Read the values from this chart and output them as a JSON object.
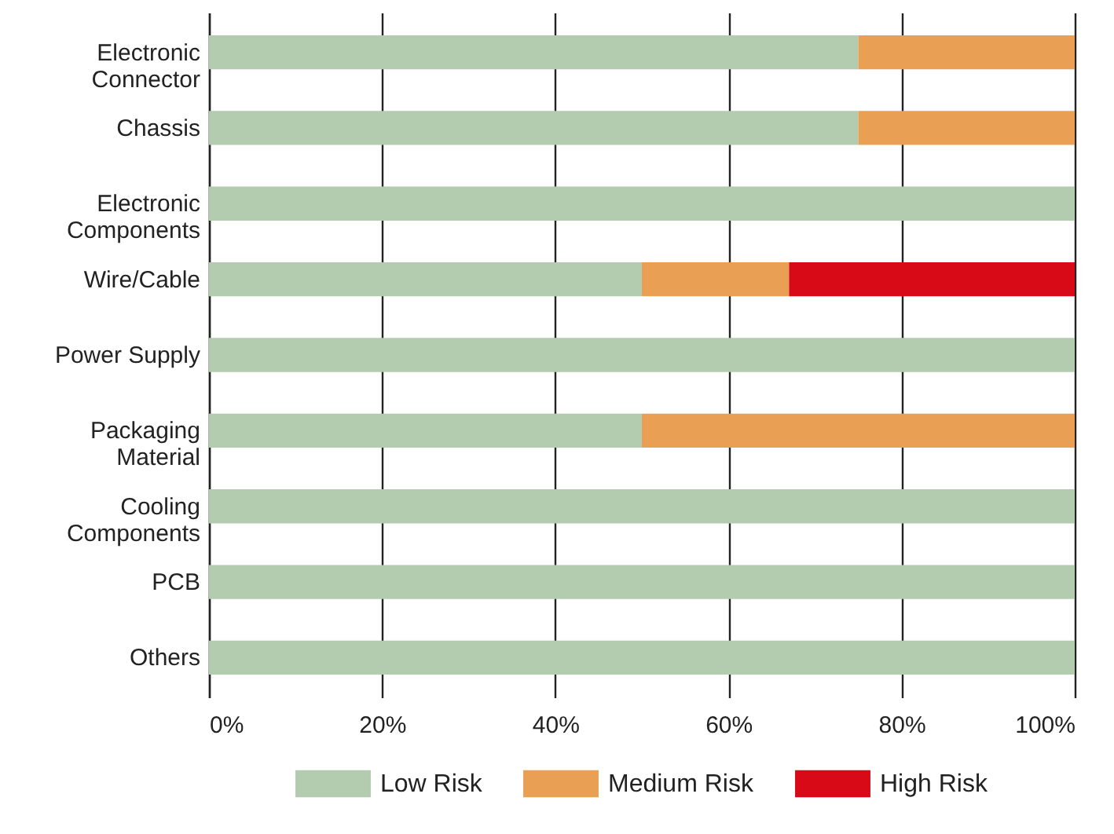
{
  "chart_data": {
    "type": "bar",
    "orientation": "horizontal",
    "stacked": true,
    "categories": [
      "Electronic Connector",
      "Chassis",
      "Electronic Components",
      "Wire/Cable",
      "Power Supply",
      "Packaging Material",
      "Cooling Components",
      "PCB",
      "Others"
    ],
    "series": [
      {
        "name": "Low Risk",
        "color": "#b3ccb0",
        "values": [
          75,
          75,
          100,
          50,
          100,
          50,
          100,
          100,
          100
        ]
      },
      {
        "name": "Medium Risk",
        "color": "#e9a054",
        "values": [
          25,
          25,
          0,
          17,
          0,
          50,
          0,
          0,
          0
        ]
      },
      {
        "name": "High Risk",
        "color": "#d90a18",
        "values": [
          0,
          0,
          0,
          33,
          0,
          0,
          0,
          0,
          0
        ]
      }
    ],
    "xlim": [
      0,
      100
    ],
    "xticks": [
      {
        "value": 0,
        "label": "0%"
      },
      {
        "value": 20,
        "label": "20%"
      },
      {
        "value": 40,
        "label": "40%"
      },
      {
        "value": 60,
        "label": "60%"
      },
      {
        "value": 80,
        "label": "80%"
      },
      {
        "value": 100,
        "label": "100%"
      }
    ],
    "grid": "x",
    "legend": "bottom"
  }
}
